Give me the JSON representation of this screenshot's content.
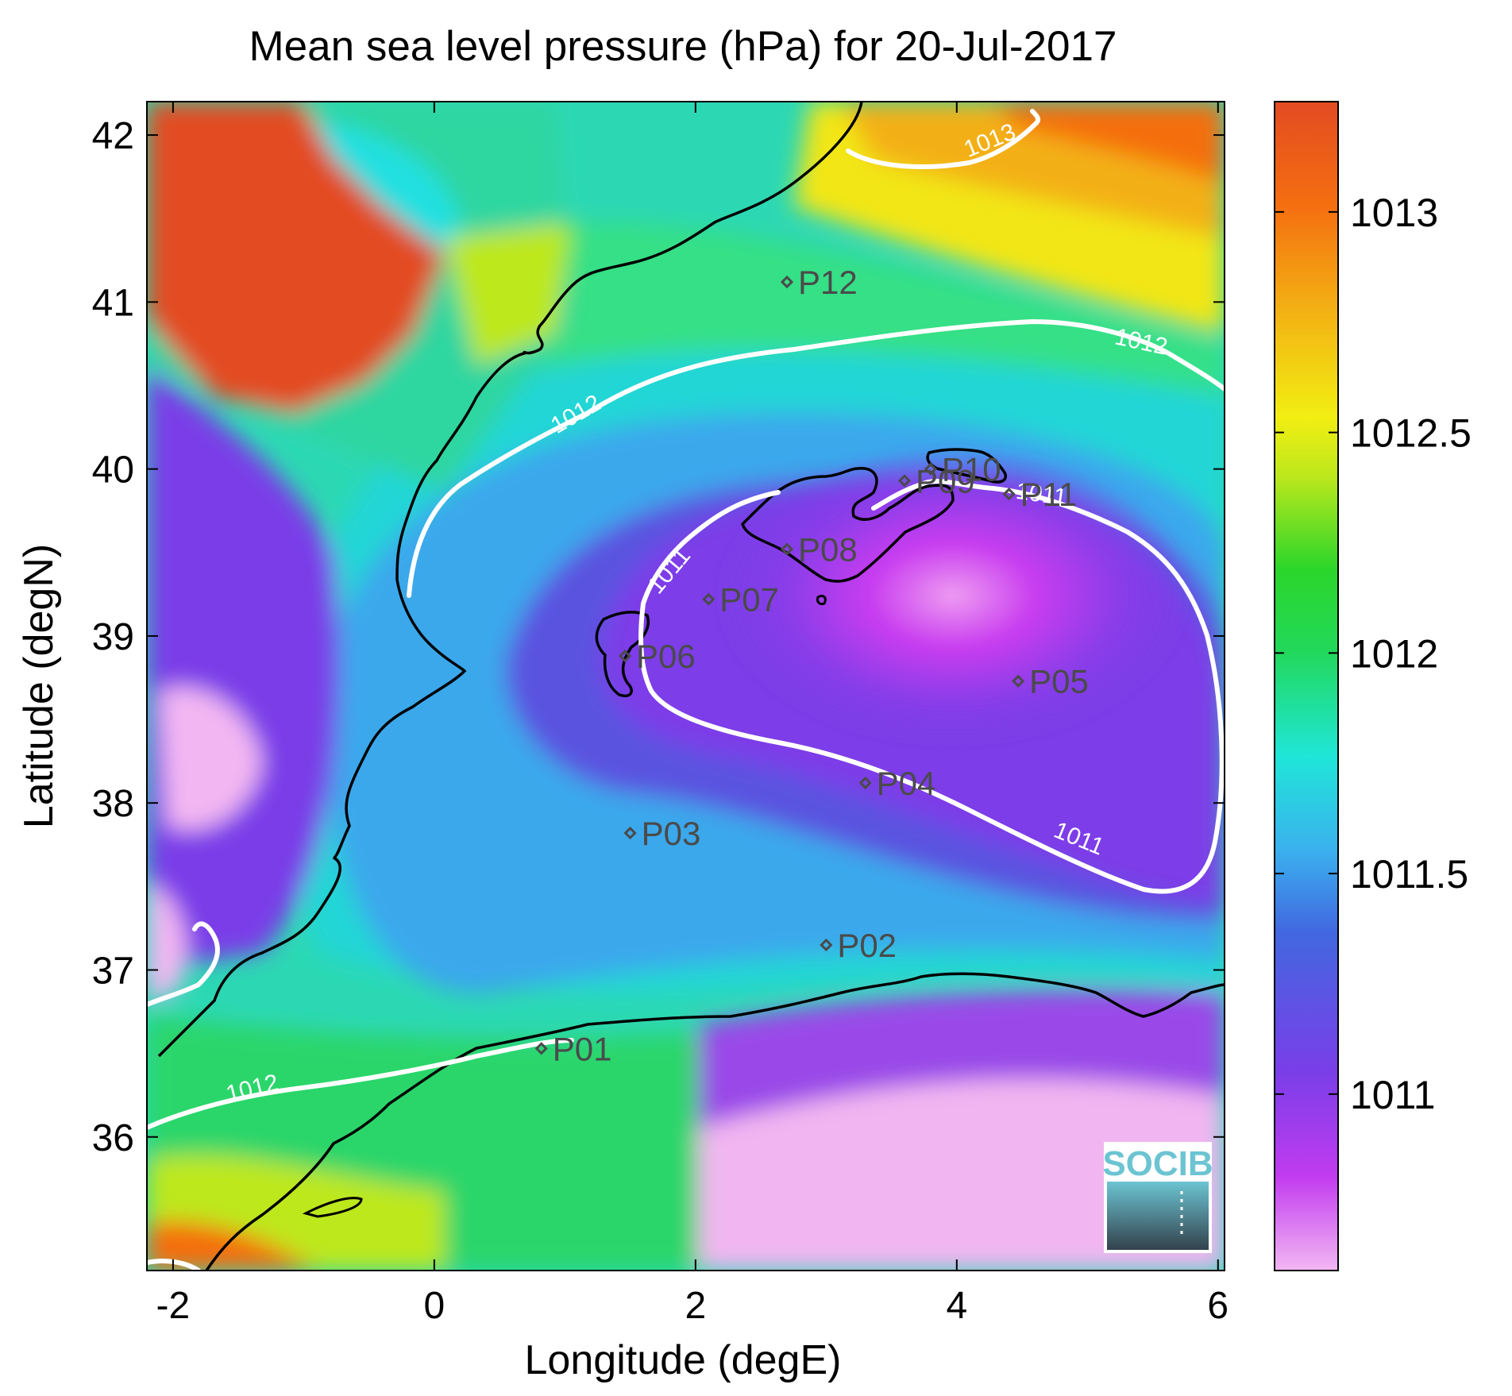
{
  "chart_data": {
    "type": "heatmap",
    "title": "Mean sea level pressure (hPa) for 20-Jul-2017",
    "xlabel": "Longitude (degE)",
    "ylabel": "Latitude (degN)",
    "xlim": [
      -2.2,
      6.05
    ],
    "ylim": [
      35.2,
      42.2
    ],
    "xticks": [
      -2,
      0,
      2,
      4,
      6
    ],
    "xtick_labels": [
      "-2",
      "0",
      "2",
      "4",
      "6"
    ],
    "yticks": [
      36,
      37,
      38,
      39,
      40,
      41,
      42
    ],
    "ytick_labels": [
      "36",
      "37",
      "38",
      "39",
      "40",
      "41",
      "42"
    ],
    "colorbar": {
      "range": [
        1010.6,
        1013.25
      ],
      "ticks": [
        1011,
        1011.5,
        1012,
        1012.5,
        1013
      ],
      "tick_labels": [
        "1011",
        "1011.5",
        "1012",
        "1012.5",
        "1013"
      ],
      "colormap": [
        "#f2b7f2",
        "#c23cf0",
        "#7a3ee8",
        "#4268e0",
        "#3ab1ee",
        "#1fe6d8",
        "#22d85a",
        "#2bd62a",
        "#bde81c",
        "#f2ee12",
        "#f3b214",
        "#f56f10",
        "#e34b22"
      ]
    },
    "contour_levels": [
      {
        "value": 1011,
        "label": "1011"
      },
      {
        "value": 1012,
        "label": "1012"
      },
      {
        "value": 1013,
        "label": "1013"
      }
    ],
    "stations": [
      {
        "name": "P01",
        "lon": 0.82,
        "lat": 36.53
      },
      {
        "name": "P02",
        "lon": 3.0,
        "lat": 37.15
      },
      {
        "name": "P03",
        "lon": 1.5,
        "lat": 37.82
      },
      {
        "name": "P04",
        "lon": 3.3,
        "lat": 38.12
      },
      {
        "name": "P05",
        "lon": 4.47,
        "lat": 38.73
      },
      {
        "name": "P06",
        "lon": 1.46,
        "lat": 38.88
      },
      {
        "name": "P07",
        "lon": 2.1,
        "lat": 39.22
      },
      {
        "name": "P08",
        "lon": 2.7,
        "lat": 39.52
      },
      {
        "name": "P09",
        "lon": 3.6,
        "lat": 39.93
      },
      {
        "name": "P10",
        "lon": 3.8,
        "lat": 40.0
      },
      {
        "name": "P11",
        "lon": 4.4,
        "lat": 39.85
      },
      {
        "name": "P12",
        "lon": 2.7,
        "lat": 41.12
      }
    ],
    "grid": false
  },
  "logo": {
    "text": "SOCIB"
  }
}
